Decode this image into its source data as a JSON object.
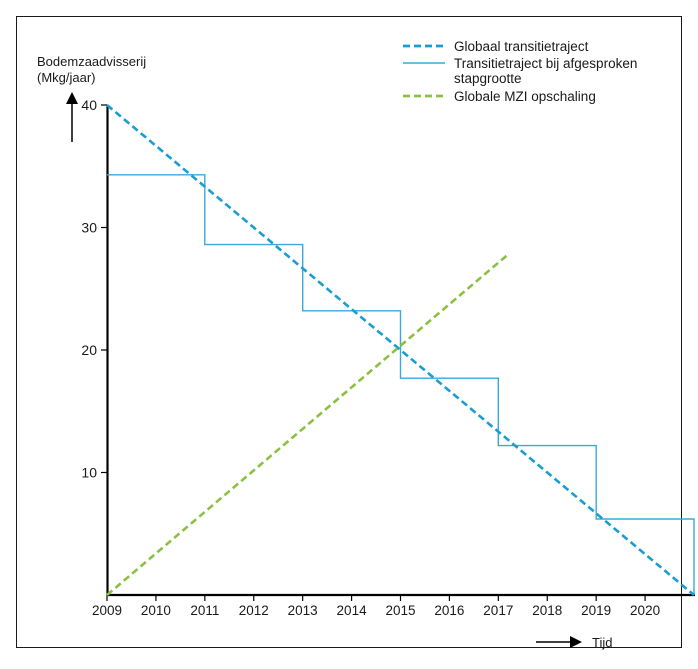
{
  "chart_data": {
    "type": "line",
    "ylabel": "Bodemzaadvisserij",
    "yunit": "(Mkg/jaar)",
    "xlabel": "Tijd",
    "ylim": [
      0,
      40
    ],
    "yticks": [
      10,
      20,
      30,
      40
    ],
    "xlim": [
      2009,
      2021
    ],
    "xticks": [
      "2009",
      "2010",
      "2011",
      "2012",
      "2013",
      "2014",
      "2015",
      "2016",
      "2017",
      "2018",
      "2019",
      "2020"
    ],
    "legend_position": "top-right",
    "series": [
      {
        "name": "Globaal transitietraject",
        "style": "dashed",
        "color": "#1a9dd0",
        "points": [
          [
            2009,
            40
          ],
          [
            2021,
            0
          ]
        ]
      },
      {
        "name": "Transitietraject bij afgesproken stapgrootte",
        "style": "step",
        "color": "#39a9dc",
        "points": [
          [
            2009,
            34.3
          ],
          [
            2011,
            34.3
          ],
          [
            2011,
            28.6
          ],
          [
            2013,
            28.6
          ],
          [
            2013,
            23.2
          ],
          [
            2015,
            23.2
          ],
          [
            2015,
            17.7
          ],
          [
            2017,
            17.7
          ],
          [
            2017,
            12.2
          ],
          [
            2019,
            12.2
          ],
          [
            2019,
            6.2
          ],
          [
            2021,
            6.2
          ],
          [
            2021,
            0
          ]
        ]
      },
      {
        "name": "Globale MZI opschaling",
        "style": "dashed",
        "color": "#8cc043",
        "points": [
          [
            2009,
            0
          ],
          [
            2017.2,
            27.8
          ]
        ]
      }
    ]
  }
}
